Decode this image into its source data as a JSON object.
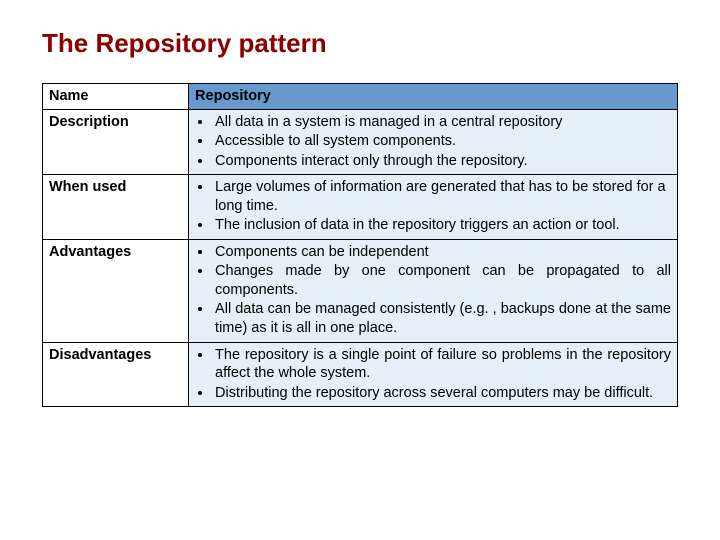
{
  "title": "The Repository pattern",
  "colors": {
    "title": "#8b0000",
    "header_bg": "#6699cc",
    "cell_bg": "#e6eef7",
    "border": "#000000",
    "background": "#ffffff"
  },
  "typography": {
    "title_fontsize_pt": 20,
    "body_fontsize_pt": 11,
    "font_family": "Arial"
  },
  "table": {
    "headers": {
      "left": "Name",
      "right": "Repository"
    },
    "col_widths_pct": [
      23,
      77
    ],
    "rows": [
      {
        "label": "Description",
        "bullets": [
          "All data in a system is managed in a central repository",
          "Accessible to all system components.",
          "Components interact only through the repository."
        ]
      },
      {
        "label": "When used",
        "bullets": [
          "Large volumes of information are generated that has to be stored for a long time.",
          "The inclusion of data in the repository triggers an action or tool."
        ]
      },
      {
        "label": "Advantages",
        "bullets": [
          "Components can be independent",
          "Changes made by one component can be propagated to all components.",
          "All data can be managed consistently (e.g. , backups done at the same time) as it is all in one place."
        ],
        "justify": true
      },
      {
        "label": "Disadvantages",
        "bullets": [
          "The repository is a single point of failure so problems in the repository affect the whole system.",
          "Distributing the repository across several computers may be difficult."
        ],
        "justify": true
      }
    ]
  }
}
